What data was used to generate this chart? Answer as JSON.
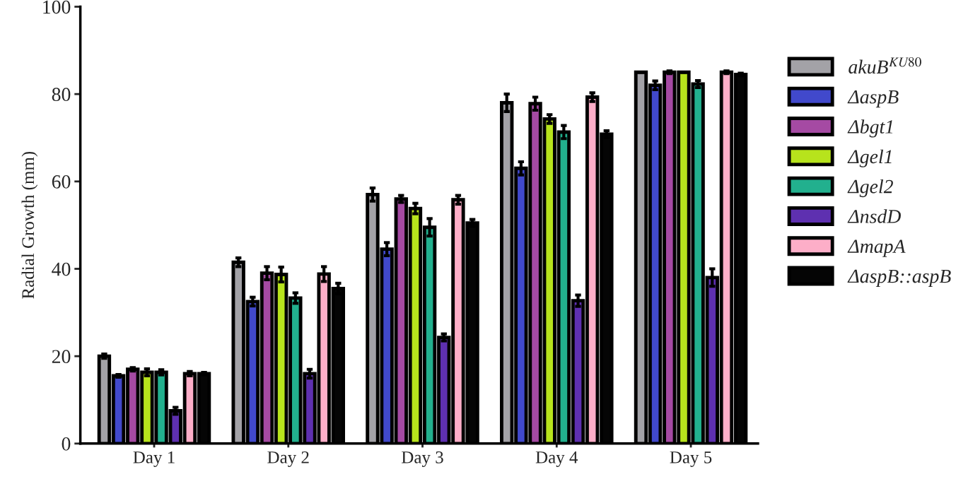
{
  "chart_data": {
    "type": "bar",
    "ylabel": "Radial Growth (mm)",
    "categories": [
      "Day 1",
      "Day 2",
      "Day 3",
      "Day 4",
      "Day 5"
    ],
    "ylim": [
      0,
      100
    ],
    "yticks": [
      0,
      20,
      40,
      60,
      80,
      100
    ],
    "grid": false,
    "legend": "right",
    "series": [
      {
        "name": "akuB$^{KU80}$",
        "color": "#a3a2a7",
        "values": [
          20,
          41.5,
          57,
          78,
          85
        ],
        "errors": [
          0.5,
          1,
          1.5,
          2,
          0
        ]
      },
      {
        "name": "ΔaspB",
        "color": "#4149cc",
        "values": [
          15.5,
          32.5,
          44.5,
          63,
          82
        ],
        "errors": [
          0.3,
          1,
          1.5,
          1.5,
          1
        ]
      },
      {
        "name": "Δbgt1",
        "color": "#a54aa3",
        "values": [
          17,
          39,
          56,
          77.8,
          85
        ],
        "errors": [
          0.4,
          1.5,
          0.8,
          1.5,
          0.3
        ]
      },
      {
        "name": "Δgel1",
        "color": "#b7e31c",
        "values": [
          16.3,
          38.7,
          53.8,
          74.3,
          85
        ],
        "errors": [
          0.8,
          1.7,
          1.2,
          1,
          0
        ]
      },
      {
        "name": "Δgel2",
        "color": "#22b08e",
        "values": [
          16.3,
          33.3,
          49.5,
          71.3,
          82.3
        ],
        "errors": [
          0.6,
          1.2,
          2,
          1.5,
          0.8
        ]
      },
      {
        "name": "ΔnsdD",
        "color": "#5e30b0",
        "values": [
          7.5,
          16,
          24.3,
          32.7,
          38
        ],
        "errors": [
          0.8,
          1,
          0.8,
          1.3,
          2
        ]
      },
      {
        "name": "ΔmapA",
        "color": "#fdaec8",
        "values": [
          16,
          38.8,
          55.8,
          79.3,
          85
        ],
        "errors": [
          0.5,
          1.7,
          1,
          1,
          0.3
        ]
      },
      {
        "name": "ΔaspB::aspB",
        "color": "#050505",
        "values": [
          16,
          35.5,
          50.5,
          70.8,
          84.5
        ],
        "errors": [
          0.3,
          1.2,
          0.8,
          0.8,
          0.3
        ]
      }
    ]
  }
}
